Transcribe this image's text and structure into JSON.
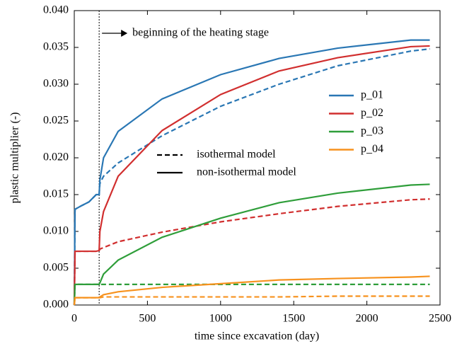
{
  "chart_data": {
    "type": "line",
    "xlabel": "time since excavation (day)",
    "ylabel": "plastic multiplier (-)",
    "xlim": [
      0,
      2500
    ],
    "ylim": [
      0,
      0.04
    ],
    "xticks": [
      0,
      500,
      1000,
      1500,
      2000,
      2500
    ],
    "yticks": [
      {
        "value": 0,
        "label": "0.000"
      },
      0.005,
      {
        "value": 0.01,
        "label": "0.010"
      },
      0.015,
      {
        "value": 0.02,
        "label": "0.020"
      },
      0.025,
      {
        "value": 0.03,
        "label": "0.030"
      },
      0.035,
      {
        "value": 0.04,
        "label": "0.040"
      }
    ],
    "annotation": {
      "text": "beginning of the heating stage",
      "x": 170
    },
    "line_styles": {
      "isothermal": {
        "label": "isothermal model",
        "dash": "7 4"
      },
      "non_isothermal": {
        "label": "non-isothermal model",
        "dash": "none"
      }
    },
    "x": [
      0,
      5,
      50,
      100,
      150,
      170,
      175,
      200,
      300,
      600,
      1000,
      1400,
      1800,
      2300,
      2430
    ],
    "series": [
      {
        "name": "p_01",
        "color": "#2a77b4",
        "non_isothermal": [
          0,
          0.013,
          0.0135,
          0.014,
          0.015,
          0.015,
          0.017,
          0.02,
          0.0236,
          0.028,
          0.0313,
          0.0335,
          0.0349,
          0.036,
          0.036
        ],
        "isothermal": [
          0,
          0.013,
          0.0135,
          0.014,
          0.015,
          0.015,
          0.0165,
          0.0175,
          0.0193,
          0.023,
          0.027,
          0.03,
          0.0325,
          0.0345,
          0.0348
        ]
      },
      {
        "name": "p_02",
        "color": "#d12f2f",
        "non_isothermal": [
          0,
          0.0073,
          0.0073,
          0.0073,
          0.0073,
          0.0074,
          0.01,
          0.0127,
          0.0175,
          0.0237,
          0.0286,
          0.0318,
          0.0336,
          0.0351,
          0.0352
        ],
        "isothermal": [
          0,
          0.0073,
          0.0073,
          0.0073,
          0.0073,
          0.0074,
          0.0076,
          0.0078,
          0.0086,
          0.0099,
          0.0113,
          0.0124,
          0.0134,
          0.0143,
          0.0144
        ]
      },
      {
        "name": "p_03",
        "color": "#2f9e3a",
        "non_isothermal": [
          0,
          0.0028,
          0.0028,
          0.0028,
          0.0028,
          0.0028,
          0.003,
          0.0042,
          0.0061,
          0.0092,
          0.0118,
          0.0139,
          0.0152,
          0.0163,
          0.0164
        ],
        "isothermal": [
          0,
          0.0028,
          0.0028,
          0.0028,
          0.0028,
          0.0028,
          0.0028,
          0.0028,
          0.0028,
          0.0028,
          0.0028,
          0.0028,
          0.0028,
          0.0028,
          0.0028
        ]
      },
      {
        "name": "p_04",
        "color": "#f7921e",
        "non_isothermal": [
          0,
          0.001,
          0.001,
          0.001,
          0.001,
          0.001,
          0.0011,
          0.0014,
          0.0018,
          0.0024,
          0.0029,
          0.0034,
          0.0036,
          0.0038,
          0.0039
        ],
        "isothermal": [
          0,
          0.001,
          0.001,
          0.001,
          0.001,
          0.001,
          0.001,
          0.0011,
          0.0011,
          0.0011,
          0.0011,
          0.0011,
          0.0012,
          0.0012,
          0.0012
        ]
      }
    ]
  }
}
